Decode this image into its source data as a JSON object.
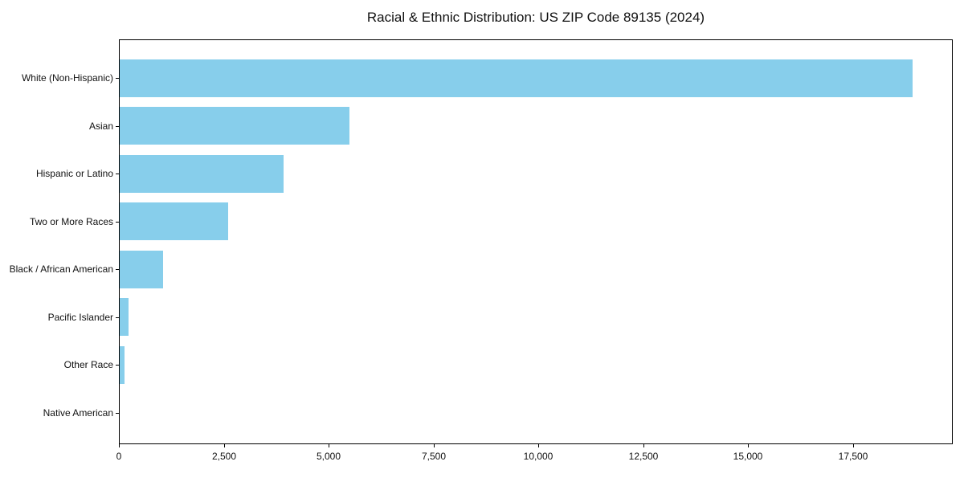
{
  "chart_data": {
    "type": "bar",
    "orientation": "horizontal",
    "title": "Racial & Ethnic Distribution: US ZIP Code 89135 (2024)",
    "categories": [
      "White (Non-Hispanic)",
      "Asian",
      "Hispanic or Latino",
      "Two or More Races",
      "Black / African American",
      "Pacific Islander",
      "Other Race",
      "Native American"
    ],
    "values": [
      18930,
      5490,
      3920,
      2600,
      1060,
      235,
      130,
      15
    ],
    "xlabel": "",
    "ylabel": "",
    "xlim": [
      0,
      19880
    ],
    "x_ticks": [
      0,
      2500,
      5000,
      7500,
      10000,
      12500,
      15000,
      17500
    ],
    "x_tick_labels": [
      "0",
      "2,500",
      "5,000",
      "7,500",
      "10,000",
      "12,500",
      "15,000",
      "17,500"
    ],
    "bar_color": "#87CEEB",
    "background_color": "#ffffff",
    "frame_color": "#000000",
    "grid": false,
    "legend": null
  }
}
